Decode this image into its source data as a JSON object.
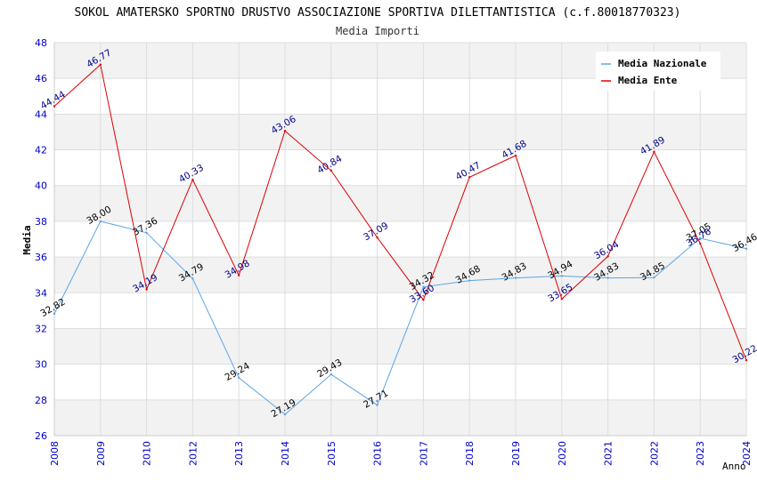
{
  "chart_data": {
    "type": "line",
    "title": "SOKOL AMATERSKO SPORTNO DRUSTVO ASSOCIAZIONE SPORTIVA DILETTANTISTICA (c.f.80018770323)",
    "subtitle": "Media Importi",
    "xlabel": "Anno",
    "ylabel": "Media",
    "ylim": [
      26,
      48
    ],
    "yticks": [
      26,
      28,
      30,
      32,
      34,
      36,
      38,
      40,
      42,
      44,
      46,
      48
    ],
    "categories": [
      "2008",
      "2009",
      "2010",
      "2012",
      "2013",
      "2014",
      "2015",
      "2016",
      "2017",
      "2018",
      "2019",
      "2020",
      "2021",
      "2022",
      "2023",
      "2024"
    ],
    "series": [
      {
        "name": "Media Nazionale",
        "color": "#5aa5e8",
        "label_color": "#000000",
        "values": [
          32.82,
          38.0,
          37.36,
          34.79,
          29.24,
          27.19,
          29.43,
          27.71,
          34.32,
          34.68,
          34.83,
          34.94,
          34.83,
          34.85,
          37.05,
          36.46
        ],
        "labels": [
          "32.82",
          "38.00",
          "37.36",
          "34.79",
          "29.24",
          "27.19",
          "29.43",
          "27.71",
          "34.32",
          "34.68",
          "34.83",
          "34.94",
          "34.83",
          "34.85",
          "37.05",
          "36.46"
        ]
      },
      {
        "name": "Media Ente",
        "color": "#dd0000",
        "label_color": "#00008b",
        "values": [
          44.44,
          46.77,
          34.19,
          40.33,
          34.98,
          43.06,
          40.84,
          37.09,
          33.6,
          40.47,
          41.68,
          33.65,
          36.04,
          41.89,
          36.76,
          30.22
        ],
        "labels": [
          "44.44",
          "46.77",
          "34.19",
          "40.33",
          "34.98",
          "43.06",
          "40.84",
          "37.09",
          "33.60",
          "40.47",
          "41.68",
          "33.65",
          "36.04",
          "41.89",
          "36.76",
          "30.22"
        ]
      }
    ],
    "grid": true,
    "legend": "top-right"
  }
}
